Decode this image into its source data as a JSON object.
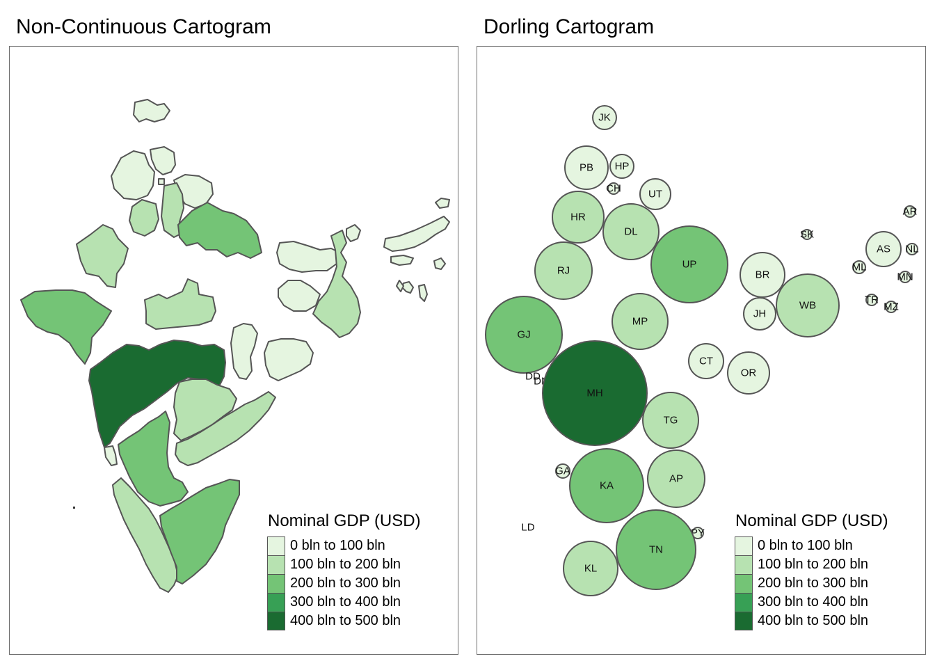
{
  "titles": {
    "left": "Non-Continuous Cartogram",
    "right": "Dorling Cartogram"
  },
  "legend": {
    "title": "Nominal GDP (USD)",
    "items": [
      {
        "label": "0 bln to 100 bln",
        "color": "#e5f5e0"
      },
      {
        "label": "100 bln to 200 bln",
        "color": "#b7e2b1"
      },
      {
        "label": "200 bln to 300 bln",
        "color": "#74c476"
      },
      {
        "label": "300 bln to 400 bln",
        "color": "#37a055"
      },
      {
        "label": "400 bln to 500 bln",
        "color": "#1a6b31"
      }
    ]
  },
  "map_data": {
    "type": "cartogram",
    "measure": "Nominal GDP (USD)",
    "states": [
      {
        "code": "JK",
        "gdp_class": 0
      },
      {
        "code": "PB",
        "gdp_class": 0
      },
      {
        "code": "HP",
        "gdp_class": 0
      },
      {
        "code": "CH",
        "gdp_class": 0
      },
      {
        "code": "UT",
        "gdp_class": 0
      },
      {
        "code": "HR",
        "gdp_class": 1
      },
      {
        "code": "DL",
        "gdp_class": 1
      },
      {
        "code": "RJ",
        "gdp_class": 1
      },
      {
        "code": "UP",
        "gdp_class": 2
      },
      {
        "code": "BR",
        "gdp_class": 0
      },
      {
        "code": "JH",
        "gdp_class": 0
      },
      {
        "code": "WB",
        "gdp_class": 1
      },
      {
        "code": "SK",
        "gdp_class": 0
      },
      {
        "code": "AR",
        "gdp_class": 0
      },
      {
        "code": "AS",
        "gdp_class": 0
      },
      {
        "code": "NL",
        "gdp_class": 0
      },
      {
        "code": "ML",
        "gdp_class": 0
      },
      {
        "code": "MN",
        "gdp_class": 0
      },
      {
        "code": "TR",
        "gdp_class": 0
      },
      {
        "code": "MZ",
        "gdp_class": 0
      },
      {
        "code": "GJ",
        "gdp_class": 2
      },
      {
        "code": "MP",
        "gdp_class": 1
      },
      {
        "code": "CT",
        "gdp_class": 0
      },
      {
        "code": "OR",
        "gdp_class": 0
      },
      {
        "code": "DD",
        "gdp_class": 0
      },
      {
        "code": "DN",
        "gdp_class": 0
      },
      {
        "code": "MH",
        "gdp_class": 4
      },
      {
        "code": "TG",
        "gdp_class": 1
      },
      {
        "code": "GA",
        "gdp_class": 0
      },
      {
        "code": "KA",
        "gdp_class": 2
      },
      {
        "code": "AP",
        "gdp_class": 1
      },
      {
        "code": "PY",
        "gdp_class": 0
      },
      {
        "code": "LD",
        "gdp_class": 0
      },
      {
        "code": "TN",
        "gdp_class": 2
      },
      {
        "code": "KL",
        "gdp_class": 1
      }
    ]
  }
}
